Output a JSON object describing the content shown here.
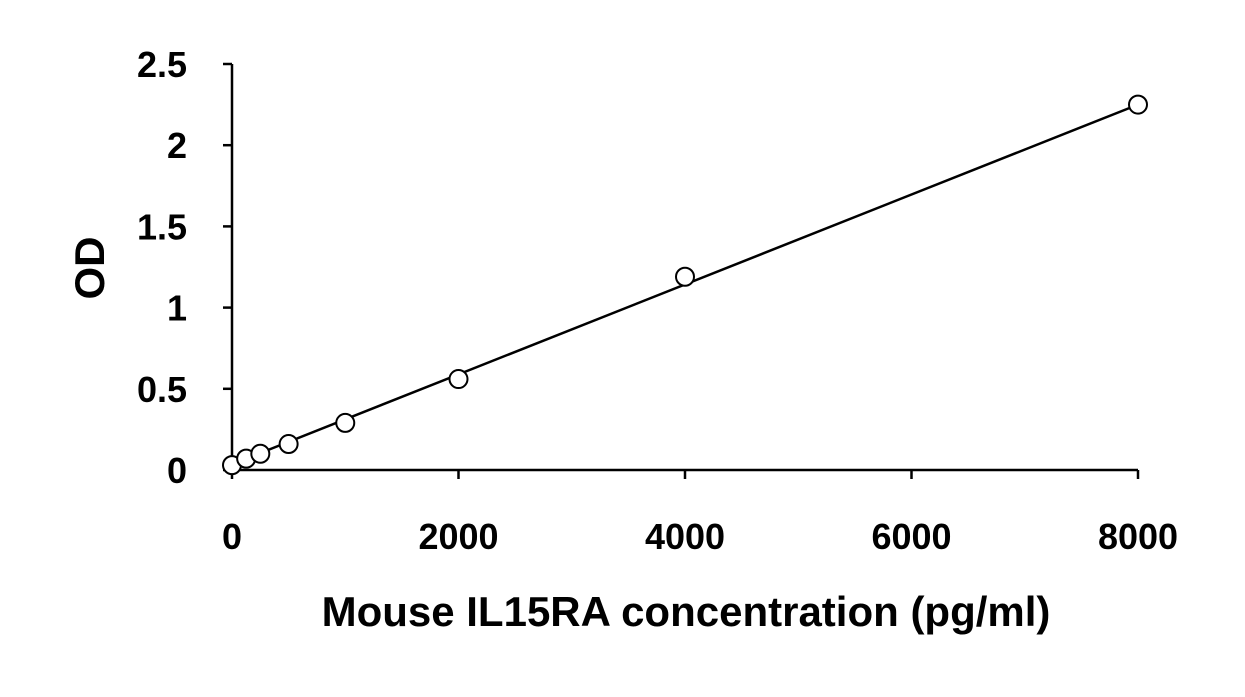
{
  "chart_data": {
    "type": "scatter",
    "title": "",
    "xlabel": "Mouse IL15RA concentration (pg/ml)",
    "ylabel": "OD",
    "xlim": [
      0,
      8000
    ],
    "ylim": [
      0,
      2.5
    ],
    "x_ticks": [
      0,
      2000,
      4000,
      6000,
      8000
    ],
    "x_tick_labels": [
      "0",
      "2000",
      "4000",
      "6000",
      "8000"
    ],
    "y_ticks": [
      0,
      0.5,
      1,
      1.5,
      2,
      2.5
    ],
    "y_tick_labels": [
      "0",
      "0.5",
      "1",
      "1.5",
      "2",
      "2.5"
    ],
    "grid": false,
    "legend": "none",
    "series": [
      {
        "x": [
          0,
          125,
          250,
          500,
          1000,
          2000,
          4000,
          8000
        ],
        "y": [
          0.03,
          0.07,
          0.1,
          0.16,
          0.29,
          0.56,
          1.19,
          2.25
        ]
      }
    ],
    "fit_line": {
      "type": "linear",
      "x": [
        0,
        8000
      ],
      "y": [
        0.035,
        2.25
      ]
    },
    "colors": {
      "marker_fill": "#ffffff",
      "marker_stroke": "#000000",
      "line": "#000000",
      "axis": "#000000"
    }
  }
}
